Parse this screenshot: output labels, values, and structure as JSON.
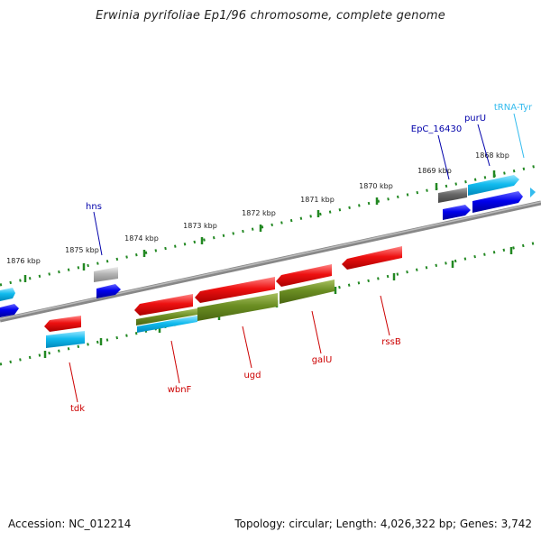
{
  "title": "Erwinia pyrifoliae Ep1/96 chromosome, complete genome",
  "footer": {
    "accession": "Accession: NC_012214",
    "topology": "Topology: circular; Length: 4,026,322 bp; Genes: 3,742"
  },
  "kbp_labels": [
    "1876 kbp",
    "1875 kbp",
    "1874 kbp",
    "1873 kbp",
    "1872 kbp",
    "1871 kbp",
    "1870 kbp",
    "1869 kbp",
    "1868 kbp"
  ],
  "genes": [
    {
      "name": "hns",
      "color": "#0000aa"
    },
    {
      "name": "EpC_16430",
      "color": "#0000aa"
    },
    {
      "name": "purU",
      "color": "#0000aa"
    },
    {
      "name": "tRNA-Tyr",
      "color": "#33bbee"
    },
    {
      "name": "tdk",
      "color": "#cc0000"
    },
    {
      "name": "wbnF",
      "color": "#cc0000"
    },
    {
      "name": "ugd",
      "color": "#cc0000"
    },
    {
      "name": "galU",
      "color": "#cc0000"
    },
    {
      "name": "rssB",
      "color": "#cc0000"
    }
  ],
  "colors": {
    "backbone": "#777777",
    "ticks": "#228822",
    "gene_red": "#ee1111",
    "gene_cyan": "#11bbee",
    "gene_blue": "#0000ee",
    "gene_olive": "#6b8e23",
    "gene_gray": "#666666",
    "gene_lightgray": "#b5b5b5"
  }
}
